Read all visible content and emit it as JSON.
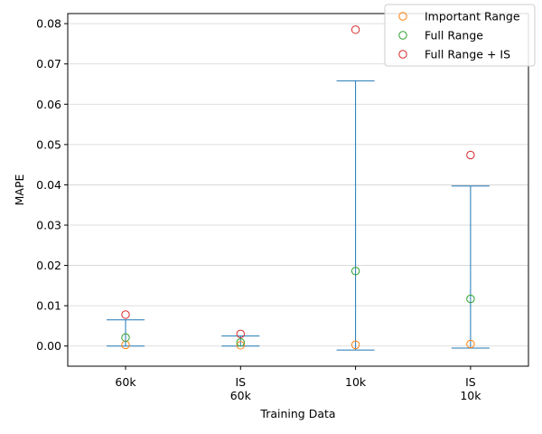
{
  "chart_data": {
    "type": "scatter",
    "xlabel": "Training Data",
    "ylabel": "MAPE",
    "categories": [
      {
        "line1": "60k",
        "line2": ""
      },
      {
        "line1": "IS",
        "line2": "60k"
      },
      {
        "line1": "10k",
        "line2": ""
      },
      {
        "line1": "IS",
        "line2": "10k"
      }
    ],
    "ylim": [
      -0.005,
      0.0825
    ],
    "yticks": [
      "0.00",
      "0.01",
      "0.02",
      "0.03",
      "0.04",
      "0.05",
      "0.06",
      "0.07",
      "0.08"
    ],
    "ytick_values": [
      0,
      0.01,
      0.02,
      0.03,
      0.04,
      0.05,
      0.06,
      0.07,
      0.08
    ],
    "grid": "horizontal",
    "legend_position": "top-right",
    "error_bars": [
      {
        "category": "60k",
        "low": 0.0,
        "high": 0.0065
      },
      {
        "category": "IS 60k",
        "low": 0.0,
        "high": 0.0025
      },
      {
        "category": "10k",
        "low": -0.001,
        "high": 0.0658
      },
      {
        "category": "IS 10k",
        "low": -0.0005,
        "high": 0.0397
      }
    ],
    "series": [
      {
        "name": "Important Range",
        "color": "#ff7f0e",
        "values": [
          0.0003,
          0.0002,
          0.0003,
          0.0005
        ]
      },
      {
        "name": "Full Range",
        "color": "#2ca02c",
        "values": [
          0.0021,
          0.0009,
          0.0186,
          0.0117
        ]
      },
      {
        "name": "Full Range + IS",
        "color": "#d62728",
        "values": [
          0.0078,
          0.003,
          0.0785,
          0.0474
        ]
      }
    ],
    "bar_color": "#1f77b4",
    "grid_color": "#d3d3d3"
  }
}
